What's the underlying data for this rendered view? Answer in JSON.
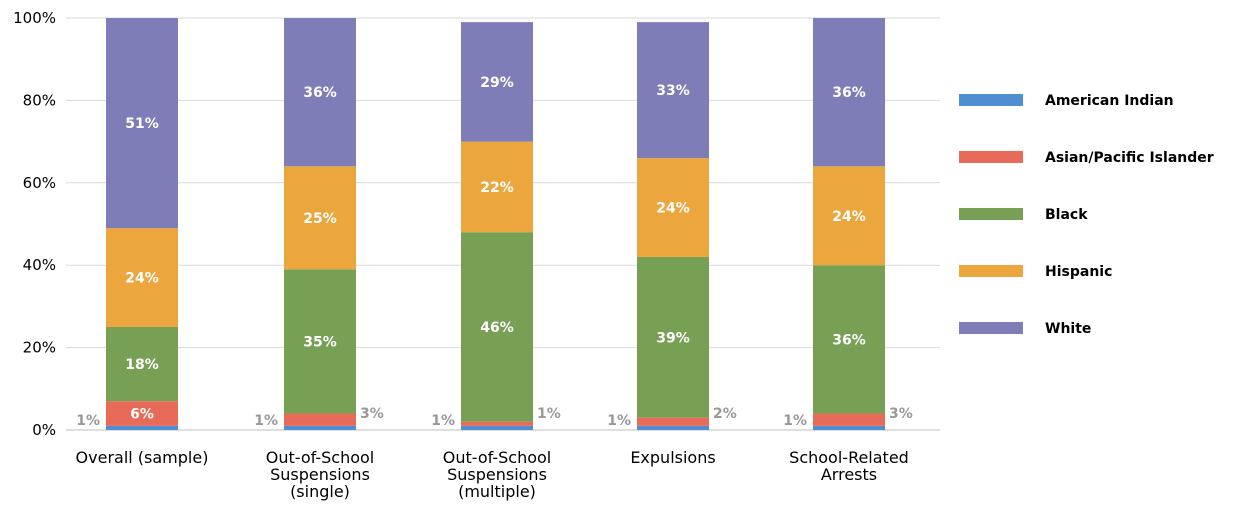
{
  "chart_data": {
    "type": "bar",
    "stacked": true,
    "categories": [
      [
        "Overall (sample)"
      ],
      [
        "Out-of-School",
        "Suspensions",
        "(single)"
      ],
      [
        "Out-of-School",
        "Suspensions",
        "(multiple)"
      ],
      [
        "Expulsions"
      ],
      [
        "School-Related",
        "Arrests"
      ]
    ],
    "series": [
      {
        "name": "American Indian",
        "color": "#4f8fd1",
        "values": [
          1,
          1,
          1,
          1,
          1
        ]
      },
      {
        "name": "Asian/Pacific Islander",
        "color": "#e86b5a",
        "values": [
          6,
          3,
          1,
          2,
          3
        ]
      },
      {
        "name": "Black",
        "color": "#77a055",
        "values": [
          18,
          35,
          46,
          39,
          36
        ]
      },
      {
        "name": "Hispanic",
        "color": "#eba73e",
        "values": [
          24,
          25,
          22,
          24,
          24
        ]
      },
      {
        "name": "White",
        "color": "#7f7db8",
        "values": [
          51,
          36,
          29,
          33,
          36
        ]
      }
    ],
    "y_ticks": [
      "0%",
      "20%",
      "40%",
      "60%",
      "80%",
      "100%"
    ],
    "ylim": [
      0,
      100
    ],
    "grid": true,
    "legend_position": "right",
    "title": "",
    "xlabel": "",
    "ylabel": ""
  }
}
